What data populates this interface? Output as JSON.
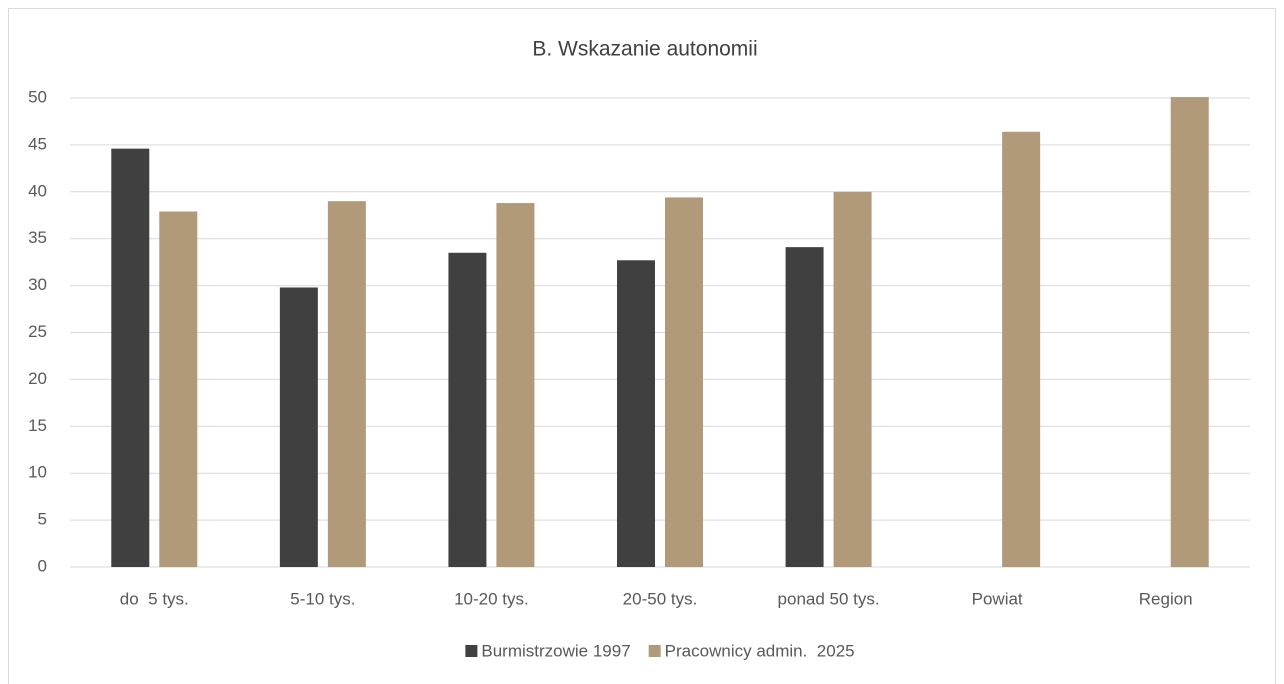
{
  "chart_data": {
    "type": "bar",
    "title": "B. Wskazanie autonomii",
    "categories": [
      "do  5 tys.",
      "5-10 tys.",
      "10-20 tys.",
      "20-50 tys.",
      "ponad 50 tys.",
      "Powiat",
      "Region"
    ],
    "series": [
      {
        "name": "Burmistrzowie 1997",
        "color": "#404040",
        "values": [
          44.6,
          29.8,
          33.5,
          32.7,
          34.1,
          null,
          null
        ]
      },
      {
        "name": "Pracownicy admin.  2025",
        "color": "#b09a7a",
        "values": [
          37.9,
          39.0,
          38.8,
          39.4,
          40.0,
          46.4,
          50.1
        ]
      }
    ],
    "ylim": [
      0,
      50
    ],
    "yticks": [
      0,
      5,
      10,
      15,
      20,
      25,
      30,
      35,
      40,
      45,
      50
    ],
    "grid": true,
    "legend": "bottom"
  }
}
